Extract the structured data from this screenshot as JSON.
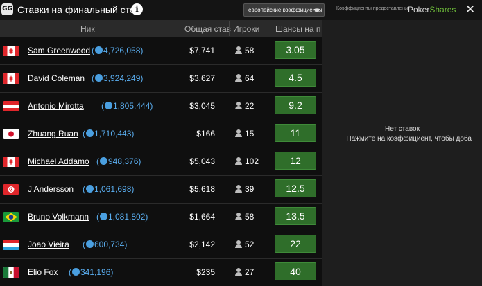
{
  "header": {
    "logo_text": "GG",
    "title": "Ставки на финальный стол",
    "info_icon": "i",
    "odds_format": "европейские коэффициенты",
    "provided_by": "Коэффициенты предоставлены",
    "brand_part1": "Poker",
    "brand_part2": "Shares",
    "close_icon": "✕"
  },
  "columns": {
    "nick": "Ник",
    "total_stake": "Общая став",
    "players": "Игроки",
    "odds": "Шансы на п"
  },
  "rows": [
    {
      "name": "Sam Greenwood",
      "chips_open": "(",
      "chips": "4,726,058)",
      "stake": "$7,741",
      "players": "58",
      "odds": "3.05",
      "flag": "canada"
    },
    {
      "name": "David Coleman",
      "chips_open": "(",
      "chips": "3,924,249)",
      "stake": "$3,627",
      "players": "64",
      "odds": "4.5",
      "flag": "canada"
    },
    {
      "name": "Antonio Mirotta",
      "chips_open": "(",
      "chips": "1,805,444)",
      "stake": "$3,045",
      "players": "22",
      "odds": "9.2",
      "flag": "austria"
    },
    {
      "name": "Zhuang Ruan",
      "chips_open": "(",
      "chips": "1,710,443)",
      "stake": "$166",
      "players": "15",
      "odds": "11",
      "flag": "japan"
    },
    {
      "name": "Michael Addamo",
      "chips_open": "(",
      "chips": "948,376)",
      "stake": "$5,043",
      "players": "102",
      "odds": "12",
      "flag": "canada"
    },
    {
      "name": "J Andersson",
      "chips_open": "(",
      "chips": "1,061,698)",
      "stake": "$5,618",
      "players": "39",
      "odds": "12.5",
      "flag": "tunisia"
    },
    {
      "name": "Bruno Volkmann",
      "chips_open": "(",
      "chips": "1,081,802)",
      "stake": "$1,664",
      "players": "58",
      "odds": "13.5",
      "flag": "brazil"
    },
    {
      "name": "Joao Vieira",
      "chips_open": "(",
      "chips": "600,734)",
      "stake": "$2,142",
      "players": "52",
      "odds": "22",
      "flag": "luxembourg"
    },
    {
      "name": "Elio Fox",
      "chips_open": "(",
      "chips": "341,196)",
      "stake": "$235",
      "players": "27",
      "odds": "40",
      "flag": "mexico"
    }
  ],
  "betslip": {
    "empty_title": "Нет ставок",
    "empty_hint": "Нажмите на коэффициент, чтобы доба"
  },
  "colors": {
    "odds_green": "#2f6e2a",
    "chip_blue": "#5aaef0",
    "brand_green": "#6fbf3a"
  }
}
